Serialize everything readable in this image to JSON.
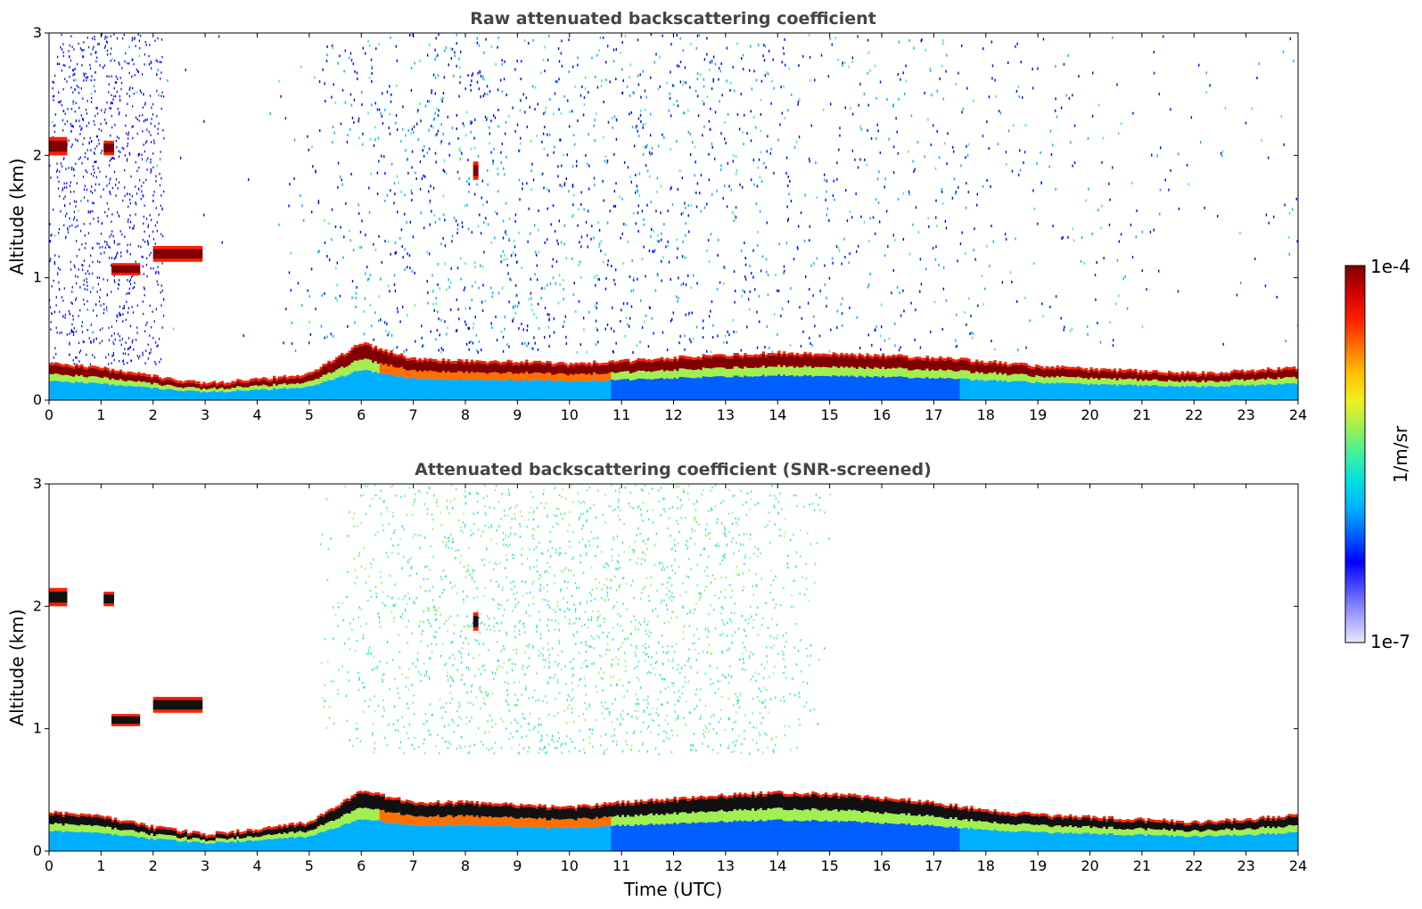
{
  "chart_data": [
    {
      "type": "heatmap",
      "title": "Raw attenuated backscattering coefficient",
      "xlabel": "",
      "ylabel": "Altitude (km)",
      "xlim": [
        0,
        24
      ],
      "ylim": [
        0,
        3
      ],
      "x_ticks": [
        0,
        1,
        2,
        3,
        4,
        5,
        6,
        7,
        8,
        9,
        10,
        11,
        12,
        13,
        14,
        15,
        16,
        17,
        18,
        19,
        20,
        21,
        22,
        23,
        24
      ],
      "y_ticks": [
        0,
        1,
        2,
        3
      ],
      "background_density_km_top": [
        0.15,
        0.15,
        0.05,
        0.02,
        0.02,
        0.2,
        0.45,
        0.55,
        0.6,
        0.65,
        0.65,
        0.6,
        0.55,
        0.5,
        0.45,
        0.4,
        0.35,
        0.3,
        0.22,
        0.18,
        0.15,
        0.12,
        0.1,
        0.1,
        0.1
      ],
      "boundary_layer_top_km": [
        0.28,
        0.25,
        0.18,
        0.12,
        0.15,
        0.2,
        0.45,
        0.32,
        0.3,
        0.3,
        0.28,
        0.3,
        0.33,
        0.35,
        0.37,
        0.36,
        0.35,
        0.33,
        0.3,
        0.26,
        0.24,
        0.22,
        0.2,
        0.22,
        0.25
      ],
      "cloud_layers": [
        {
          "start_h": 0.0,
          "end_h": 0.35,
          "base_km": 2.0,
          "top_km": 2.15
        },
        {
          "start_h": 1.05,
          "end_h": 1.25,
          "base_km": 2.0,
          "top_km": 2.12
        },
        {
          "start_h": 1.2,
          "end_h": 1.75,
          "base_km": 1.02,
          "top_km": 1.12
        },
        {
          "start_h": 2.0,
          "end_h": 2.95,
          "base_km": 1.13,
          "top_km": 1.26
        },
        {
          "start_h": 8.15,
          "end_h": 8.25,
          "base_km": 1.8,
          "top_km": 1.95
        }
      ]
    },
    {
      "type": "heatmap",
      "title": "Attenuated backscattering coefficient (SNR-screened)",
      "xlabel": "Time (UTC)",
      "ylabel": "Altitude (km)",
      "xlim": [
        0,
        24
      ],
      "ylim": [
        0,
        3
      ],
      "x_ticks": [
        0,
        1,
        2,
        3,
        4,
        5,
        6,
        7,
        8,
        9,
        10,
        11,
        12,
        13,
        14,
        15,
        16,
        17,
        18,
        19,
        20,
        21,
        22,
        23,
        24
      ],
      "y_ticks": [
        0,
        1,
        2,
        3
      ],
      "screened_noise_region": {
        "start_h": 5.2,
        "end_h": 15.0,
        "base_km": 0.8,
        "top_km": 3.0
      },
      "boundary_layer_top_km": [
        0.3,
        0.27,
        0.18,
        0.12,
        0.16,
        0.22,
        0.48,
        0.38,
        0.38,
        0.36,
        0.34,
        0.38,
        0.41,
        0.44,
        0.46,
        0.45,
        0.42,
        0.38,
        0.32,
        0.28,
        0.26,
        0.24,
        0.22,
        0.24,
        0.28
      ],
      "cloud_layers": [
        {
          "start_h": 0.0,
          "end_h": 0.35,
          "base_km": 2.0,
          "top_km": 2.15
        },
        {
          "start_h": 1.05,
          "end_h": 1.25,
          "base_km": 2.0,
          "top_km": 2.12
        },
        {
          "start_h": 1.2,
          "end_h": 1.75,
          "base_km": 1.02,
          "top_km": 1.12
        },
        {
          "start_h": 2.0,
          "end_h": 2.95,
          "base_km": 1.13,
          "top_km": 1.26
        },
        {
          "start_h": 8.15,
          "end_h": 8.25,
          "base_km": 1.8,
          "top_km": 1.95
        }
      ]
    }
  ],
  "colorbar": {
    "label": "1/m/sr",
    "max_label": "1e-4",
    "min_label": "1e-7",
    "colors": [
      "#e8e8ff",
      "#a0a0ff",
      "#5050ff",
      "#0000ff",
      "#0060ff",
      "#00b0ff",
      "#00e0e0",
      "#40f0a0",
      "#a0f050",
      "#f0f020",
      "#ffc000",
      "#ff7000",
      "#ff2000",
      "#d00000",
      "#800000"
    ]
  }
}
